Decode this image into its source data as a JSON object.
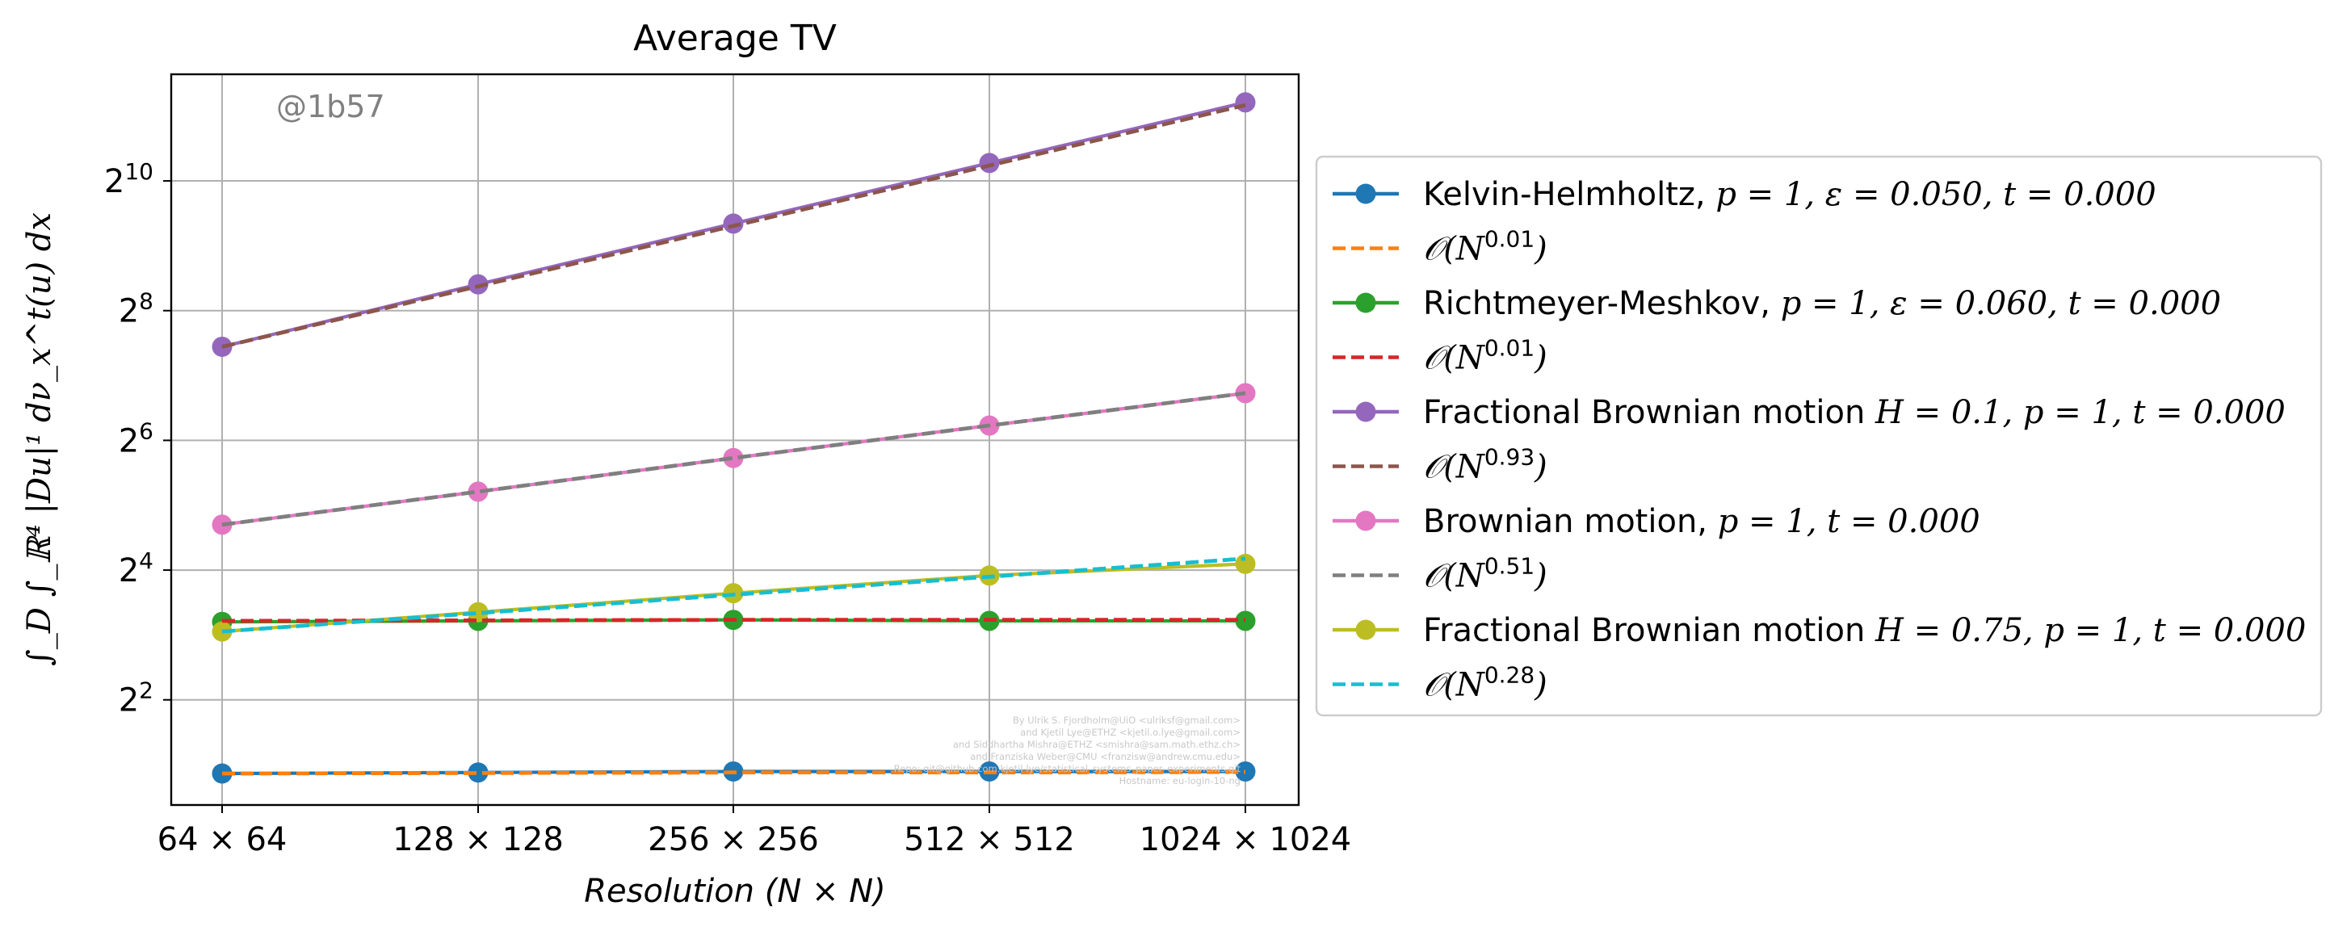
{
  "chart_data": {
    "type": "line",
    "title": "Average TV",
    "xlabel": "Resolution (N × N)",
    "ylabel": "∫_D ∫_ℝ⁴ |Du|¹ dν_x^t(u) dx",
    "y_scale": "log2",
    "grid": true,
    "legend_position": "right, outside plot",
    "watermark": "@1b57",
    "credits": [
      "By Ulrik S. Fjordholm@UiO <ulriksf@gmail.com>",
      "and Kjetil Lye@ETHZ <kjetil.o.lye@gmail.com>",
      "and Siddhartha Mishra@ETHZ <smishra@sam.math.ethz.ch>",
      "and Franziska Weber@CMU <franzisw@andrew.cmu.edu>",
      "Repo: git@github.com:kjetil-lye/statistical_systems_paper_experiments.git",
      "Hostname: eu-login-10-ng"
    ],
    "categories": [
      "64 × 64",
      "128 × 128",
      "256 × 256",
      "512 × 512",
      "1024 × 1024"
    ],
    "y_ticks": [
      {
        "value": 4,
        "base": "2",
        "exp": "2"
      },
      {
        "value": 16,
        "base": "2",
        "exp": "4"
      },
      {
        "value": 64,
        "base": "2",
        "exp": "6"
      },
      {
        "value": 256,
        "base": "2",
        "exp": "8"
      },
      {
        "value": 1024,
        "base": "2",
        "exp": "10"
      }
    ],
    "ylim": [
      1.3,
      3200
    ],
    "series": [
      {
        "name": "Kelvin-Helmholtz, p = 1, ε = 0.050, t = 0.000",
        "color": "#1f77b4",
        "style": "solid-marker",
        "values": [
          1.82,
          1.84,
          1.86,
          1.86,
          1.86
        ]
      },
      {
        "name": "𝒪(N^0.01)",
        "color": "#ff7f0e",
        "style": "dashed",
        "values": [
          1.82,
          1.83,
          1.84,
          1.84,
          1.85
        ]
      },
      {
        "name": "Richtmeyer-Meshkov, p = 1, ε = 0.060, t = 0.000",
        "color": "#2ca02c",
        "style": "solid-marker",
        "values": [
          9.2,
          9.3,
          9.4,
          9.3,
          9.3
        ]
      },
      {
        "name": "𝒪(N^0.01)",
        "color": "#d62728",
        "style": "dashed",
        "values": [
          9.3,
          9.35,
          9.4,
          9.4,
          9.4
        ]
      },
      {
        "name": "Fractional Brownian motion H = 0.1, p = 1, t = 0.000",
        "color": "#9467bd",
        "style": "solid-marker",
        "values": [
          174,
          339,
          649,
          1240,
          2370
        ]
      },
      {
        "name": "𝒪(N^0.93)",
        "color": "#8c564b",
        "style": "dashed",
        "values": [
          174,
          332,
          633,
          1207,
          2302
        ]
      },
      {
        "name": "Brownian motion, p = 1, t = 0.000",
        "color": "#e377c2",
        "style": "solid-marker",
        "values": [
          26,
          37,
          53,
          75,
          106
        ]
      },
      {
        "name": "𝒪(N^0.51)",
        "color": "#7f7f7f",
        "style": "dashed",
        "values": [
          26,
          37,
          53,
          75,
          106
        ]
      },
      {
        "name": "Fractional Brownian motion H = 0.75, p = 1, t = 0.000",
        "color": "#bcbd22",
        "style": "solid-marker",
        "values": [
          8.3,
          10.2,
          12.5,
          15.1,
          17.1
        ]
      },
      {
        "name": "𝒪(N^0.28)",
        "color": "#17becf",
        "style": "dashed",
        "values": [
          8.3,
          10.1,
          12.3,
          14.9,
          18.1
        ]
      }
    ],
    "legend": [
      {
        "base": "Kelvin-Helmholtz, ",
        "math": [
          [
            "p = 1, ε = 0.050, t = 0.000"
          ]
        ]
      },
      {
        "base": "",
        "math": [
          [
            "𝒪(N",
            "0.01",
            ")"
          ]
        ]
      },
      {
        "base": "Richtmeyer-Meshkov, ",
        "math": [
          [
            "p = 1, ε = 0.060, t = 0.000"
          ]
        ]
      },
      {
        "base": "",
        "math": [
          [
            "𝒪(N",
            "0.01",
            ")"
          ]
        ]
      },
      {
        "base": "Fractional Brownian motion ",
        "math": [
          [
            "H = 0.1, p = 1, t = 0.000"
          ]
        ]
      },
      {
        "base": "",
        "math": [
          [
            "𝒪(N",
            "0.93",
            ")"
          ]
        ]
      },
      {
        "base": "Brownian motion, ",
        "math": [
          [
            "p = 1, t = 0.000"
          ]
        ]
      },
      {
        "base": "",
        "math": [
          [
            "𝒪(N",
            "0.51",
            ")"
          ]
        ]
      },
      {
        "base": "Fractional Brownian motion ",
        "math": [
          [
            "H = 0.75, p = 1, t = 0.000"
          ]
        ]
      },
      {
        "base": "",
        "math": [
          [
            "𝒪(N",
            "0.28",
            ")"
          ]
        ]
      }
    ]
  }
}
